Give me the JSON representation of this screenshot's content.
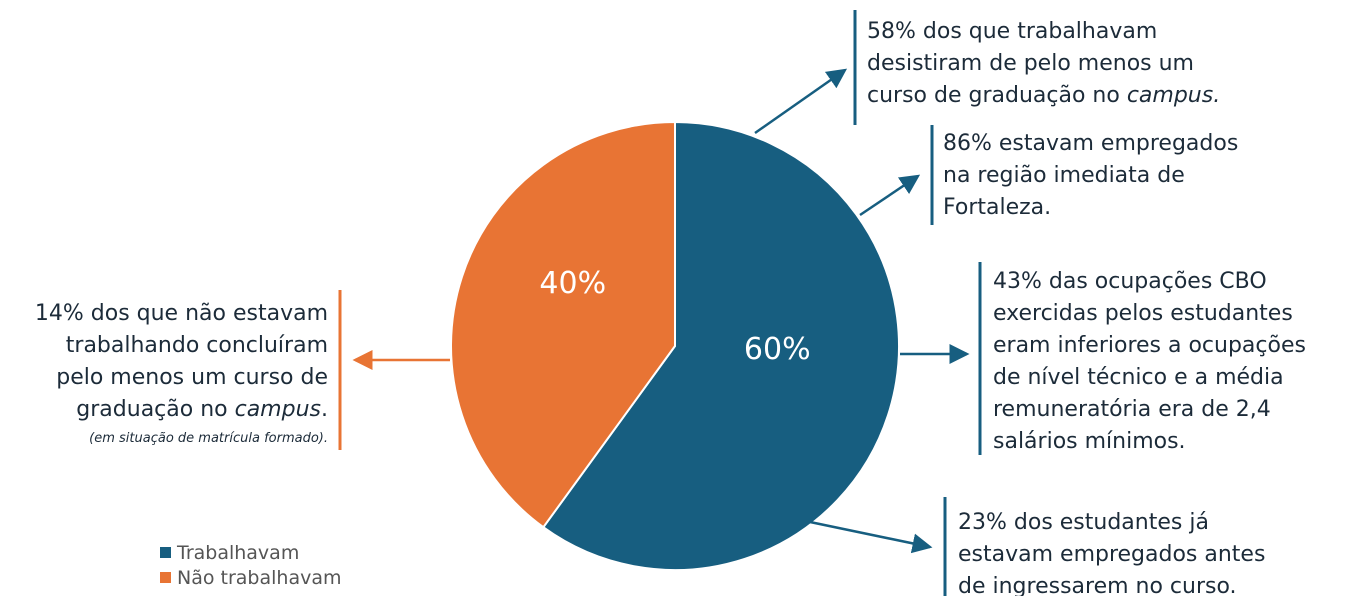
{
  "chart_data": {
    "type": "pie",
    "categories": [
      "Trabalhavam",
      "Não trabalhavam"
    ],
    "values": [
      60,
      40
    ],
    "value_labels": [
      "60%",
      "40%"
    ],
    "colors": [
      "#175e80",
      "#e87434"
    ],
    "legend": "bottom-left",
    "annotations": [
      {
        "lines": [
          [
            {
              "text": "58% dos que trabalhavam"
            }
          ],
          [
            {
              "text": "desistiram de pelo menos um"
            }
          ],
          [
            {
              "text": "curso de graduação no "
            },
            {
              "text": "campus.",
              "italic": true
            }
          ]
        ]
      },
      {
        "lines": [
          [
            {
              "text": "86%  estavam empregados"
            }
          ],
          [
            {
              "text": "na região imediata de"
            }
          ],
          [
            {
              "text": "Fortaleza."
            }
          ]
        ]
      },
      {
        "lines": [
          [
            {
              "text": "43% das ocupações CBO"
            }
          ],
          [
            {
              "text": "exercidas pelos estudantes"
            }
          ],
          [
            {
              "text": "eram inferiores a ocupações"
            }
          ],
          [
            {
              "text": "de nível técnico e a média"
            }
          ],
          [
            {
              "text": "remuneratória era de 2,4"
            }
          ],
          [
            {
              "text": "salários mínimos."
            }
          ]
        ]
      },
      {
        "lines": [
          [
            {
              "text": "23% dos estudantes já"
            }
          ],
          [
            {
              "text": "estavam empregados antes"
            }
          ],
          [
            {
              "text": "de ingressarem no curso."
            }
          ]
        ]
      },
      {
        "lines": [
          [
            {
              "text": "14% dos que não estavam"
            }
          ],
          [
            {
              "text": "trabalhando concluíram"
            }
          ],
          [
            {
              "text": "pelo menos um curso de"
            }
          ],
          [
            {
              "text": "graduação no "
            },
            {
              "text": "campus",
              "italic": true
            },
            {
              "text": "."
            }
          ]
        ],
        "note": "(em situação de matrícula formado)."
      }
    ]
  }
}
